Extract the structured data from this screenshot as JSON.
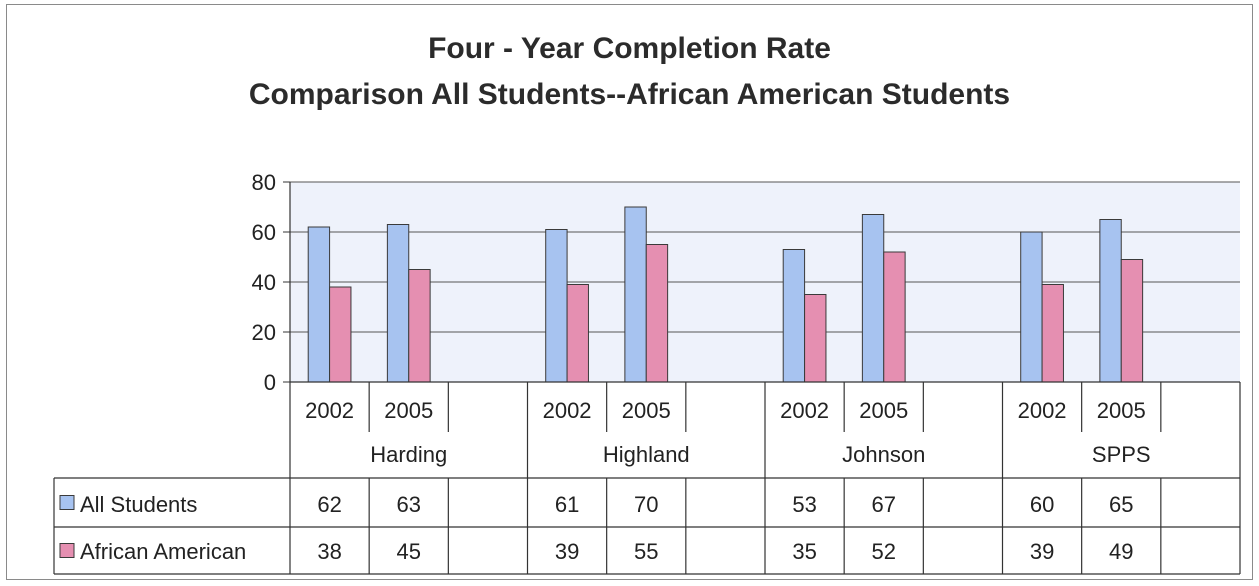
{
  "title": {
    "line1": "Four - Year Completion Rate",
    "line2": "Comparison All Students--African American Students"
  },
  "colors": {
    "all_students": "#a7c3f0",
    "african_american": "#e58fb1",
    "plot_bg": "#eef2fb",
    "grid": "#555555"
  },
  "chart_data": {
    "type": "bar",
    "title": "Four - Year Completion Rate Comparison All Students--African American Students",
    "ylim": [
      0,
      80
    ],
    "yticks": [
      0,
      20,
      40,
      60,
      80
    ],
    "grid": true,
    "legend": "data-table",
    "groups": [
      {
        "name": "Harding",
        "years": [
          "2002",
          "2005"
        ]
      },
      {
        "name": "Highland",
        "years": [
          "2002",
          "2005"
        ]
      },
      {
        "name": "Johnson",
        "years": [
          "2002",
          "2005"
        ]
      },
      {
        "name": "SPPS",
        "years": [
          "2002",
          "2005"
        ]
      }
    ],
    "series": [
      {
        "name": "All Students",
        "values": [
          62,
          63,
          61,
          70,
          53,
          67,
          60,
          65
        ]
      },
      {
        "name": "African American",
        "values": [
          38,
          45,
          39,
          55,
          35,
          52,
          39,
          49
        ]
      }
    ]
  }
}
